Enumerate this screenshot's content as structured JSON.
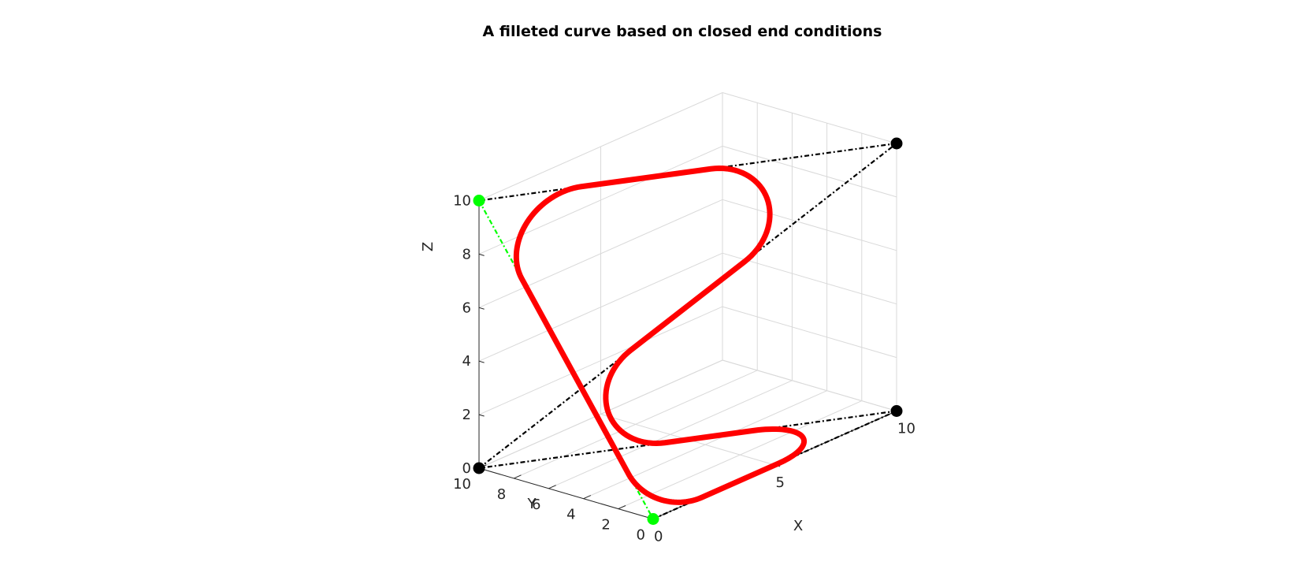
{
  "chart_data": {
    "type": "line",
    "projection": "3d",
    "title": "A filleted curve based on closed end conditions",
    "xlabel": "X",
    "ylabel": "Y",
    "zlabel": "Z",
    "xlim": [
      0,
      10
    ],
    "ylim": [
      0,
      10
    ],
    "zlim": [
      0,
      10
    ],
    "x_ticks": [
      "0",
      "5",
      "10"
    ],
    "y_ticks": [
      "0",
      "2",
      "4",
      "6",
      "8",
      "10"
    ],
    "z_ticks": [
      "0",
      "2",
      "4",
      "6",
      "8",
      "10"
    ],
    "grid": true,
    "control_polygon": [
      {
        "x": 0,
        "y": 0,
        "z": 0
      },
      {
        "x": 10,
        "y": 0,
        "z": 0
      },
      {
        "x": 0,
        "y": 10,
        "z": 0
      },
      {
        "x": 10,
        "y": 0,
        "z": 10
      },
      {
        "x": 0,
        "y": 10,
        "z": 10
      }
    ],
    "closing_segment": [
      {
        "x": 0,
        "y": 10,
        "z": 10
      },
      {
        "x": 0,
        "y": 0,
        "z": 0
      }
    ],
    "end_points": [
      {
        "x": 0,
        "y": 0,
        "z": 0
      },
      {
        "x": 0,
        "y": 10,
        "z": 10
      }
    ],
    "fillet_radius": 2,
    "colors": {
      "curve": "#ff0000",
      "control_polygon": "#000000",
      "closing_segment": "#00ff00",
      "end_points": "#00ff00",
      "control_points": "#000000",
      "grid": "#d9d9d9",
      "axis": "#262626"
    }
  }
}
